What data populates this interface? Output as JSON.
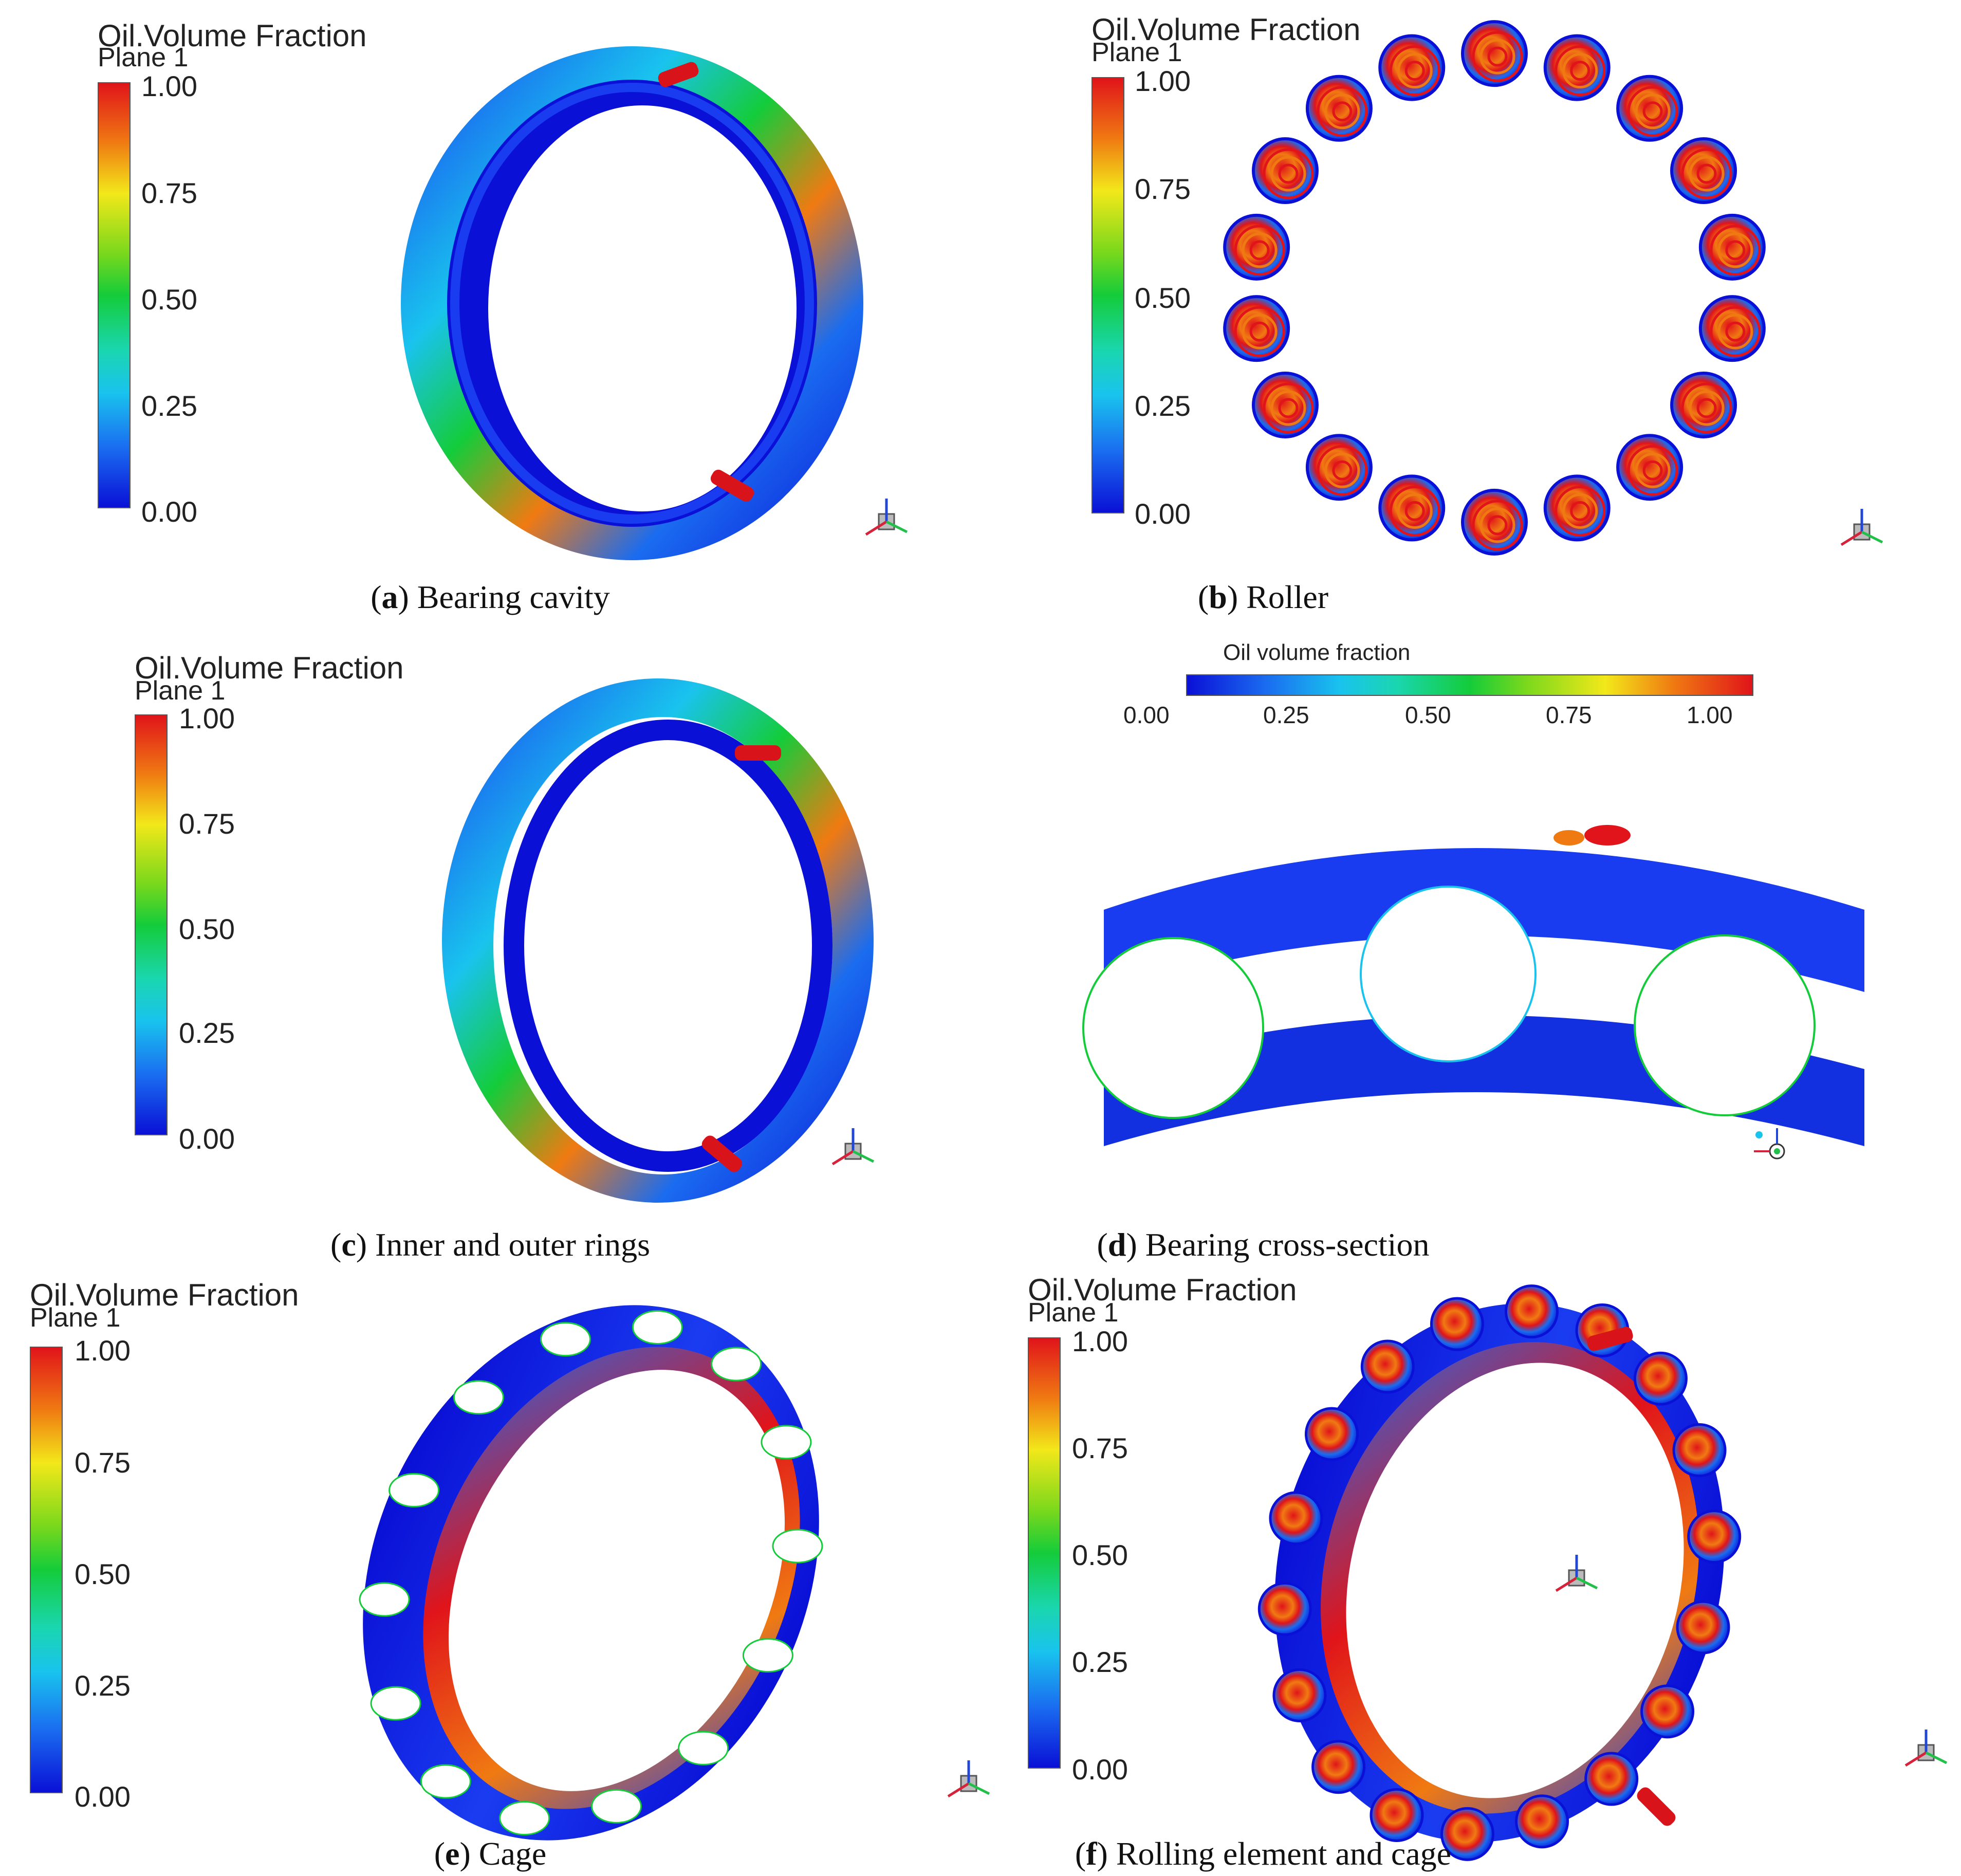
{
  "legend": {
    "title": "Oil.Volume Fraction",
    "subtitle": "Plane 1",
    "ticks": [
      "1.00",
      "0.75",
      "0.50",
      "0.25",
      "0.00"
    ]
  },
  "cross_section_legend": {
    "title": "Oil volume fraction",
    "ticks": [
      "0.00",
      "0.25",
      "0.50",
      "0.75",
      "1.00"
    ]
  },
  "panels": [
    {
      "letter": "a",
      "caption": " Bearing cavity"
    },
    {
      "letter": "b",
      "caption": " Roller"
    },
    {
      "letter": "c",
      "caption": " Inner and outer rings"
    },
    {
      "letter": "d",
      "caption": " Bearing cross-section"
    },
    {
      "letter": "e",
      "caption": " Cage"
    },
    {
      "letter": "f",
      "caption": " Rolling element and cage"
    }
  ],
  "colors": {
    "low": "#0a10d6",
    "high": "#e0141a"
  }
}
